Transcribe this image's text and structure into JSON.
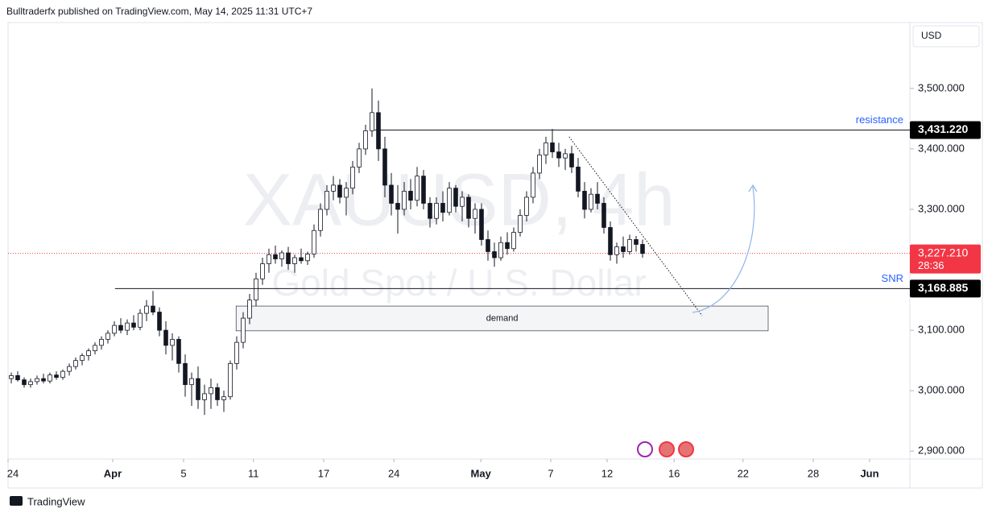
{
  "header": {
    "publisher": "Bulltraderfx published on TradingView.com, May 14, 2025 11:31 UTC+7"
  },
  "chart_data": {
    "type": "candlestick",
    "title": "XAUUSD, 4h",
    "subtitle": "Gold Spot / U.S. Dollar",
    "currency": "USD",
    "xlim": [
      0,
      140
    ],
    "xticks": [
      {
        "value": 0,
        "label": "24"
      },
      {
        "value": 16.25,
        "label": "Apr"
      },
      {
        "value": 27.25,
        "label": "5"
      },
      {
        "value": 38.1,
        "label": "11"
      },
      {
        "value": 49,
        "label": "17"
      },
      {
        "value": 59.9,
        "label": "24"
      },
      {
        "value": 73.4,
        "label": "May"
      },
      {
        "value": 84.25,
        "label": "7"
      },
      {
        "value": 93,
        "label": "12"
      },
      {
        "value": 103.4,
        "label": "16"
      },
      {
        "value": 114.1,
        "label": "22"
      },
      {
        "value": 125,
        "label": "28"
      },
      {
        "value": 133.75,
        "label": "Jun"
      }
    ],
    "ylim": [
      2887,
      3609
    ],
    "yticks": [
      {
        "value": 2900,
        "label": "2,900.000"
      },
      {
        "value": 3000,
        "label": "3,000.000"
      },
      {
        "value": 3100,
        "label": "3,100.000"
      },
      {
        "value": 3300,
        "label": "3,300.000"
      },
      {
        "value": 3400,
        "label": "3,400.000"
      },
      {
        "value": 3500,
        "label": "3,500.000"
      }
    ],
    "up_color": "#ffffff",
    "down_color": "#131722",
    "candles": [
      [
        3020,
        3030,
        3012,
        3025
      ],
      [
        3025,
        3032,
        3015,
        3018
      ],
      [
        3018,
        3022,
        3005,
        3010
      ],
      [
        3010,
        3020,
        3005,
        3015
      ],
      [
        3015,
        3025,
        3010,
        3020
      ],
      [
        3020,
        3028,
        3012,
        3016
      ],
      [
        3016,
        3030,
        3012,
        3026
      ],
      [
        3026,
        3032,
        3018,
        3022
      ],
      [
        3022,
        3035,
        3018,
        3032
      ],
      [
        3032,
        3045,
        3025,
        3040
      ],
      [
        3040,
        3055,
        3035,
        3050
      ],
      [
        3050,
        3062,
        3042,
        3058
      ],
      [
        3058,
        3070,
        3050,
        3066
      ],
      [
        3066,
        3080,
        3060,
        3075
      ],
      [
        3075,
        3090,
        3068,
        3085
      ],
      [
        3085,
        3100,
        3078,
        3095
      ],
      [
        3095,
        3115,
        3090,
        3108
      ],
      [
        3108,
        3120,
        3095,
        3100
      ],
      [
        3100,
        3118,
        3092,
        3112
      ],
      [
        3112,
        3125,
        3100,
        3105
      ],
      [
        3105,
        3135,
        3100,
        3128
      ],
      [
        3128,
        3150,
        3115,
        3140
      ],
      [
        3140,
        3165,
        3125,
        3130
      ],
      [
        3130,
        3138,
        3090,
        3100
      ],
      [
        3100,
        3115,
        3060,
        3075
      ],
      [
        3075,
        3095,
        3050,
        3085
      ],
      [
        3085,
        3090,
        3030,
        3045
      ],
      [
        3045,
        3060,
        2990,
        3010
      ],
      [
        3010,
        3030,
        2975,
        3020
      ],
      [
        3020,
        3040,
        2970,
        2985
      ],
      [
        2985,
        3010,
        2960,
        2995
      ],
      [
        2995,
        3020,
        2970,
        3005
      ],
      [
        3005,
        3012,
        2975,
        2985
      ],
      [
        2985,
        3000,
        2965,
        2990
      ],
      [
        2990,
        3050,
        2985,
        3045
      ],
      [
        3045,
        3090,
        3035,
        3080
      ],
      [
        3080,
        3130,
        3070,
        3120
      ],
      [
        3120,
        3160,
        3110,
        3150
      ],
      [
        3150,
        3195,
        3140,
        3185
      ],
      [
        3185,
        3220,
        3175,
        3210
      ],
      [
        3210,
        3235,
        3195,
        3225
      ],
      [
        3225,
        3240,
        3210,
        3218
      ],
      [
        3218,
        3232,
        3205,
        3228
      ],
      [
        3228,
        3238,
        3200,
        3210
      ],
      [
        3210,
        3225,
        3195,
        3220
      ],
      [
        3220,
        3235,
        3210,
        3215
      ],
      [
        3215,
        3230,
        3208,
        3226
      ],
      [
        3226,
        3275,
        3220,
        3265
      ],
      [
        3265,
        3310,
        3255,
        3300
      ],
      [
        3300,
        3340,
        3290,
        3330
      ],
      [
        3330,
        3355,
        3315,
        3340
      ],
      [
        3340,
        3350,
        3310,
        3320
      ],
      [
        3320,
        3345,
        3290,
        3335
      ],
      [
        3335,
        3380,
        3325,
        3370
      ],
      [
        3370,
        3410,
        3360,
        3400
      ],
      [
        3400,
        3440,
        3390,
        3430
      ],
      [
        3430,
        3500,
        3420,
        3460
      ],
      [
        3460,
        3480,
        3380,
        3400
      ],
      [
        3400,
        3420,
        3320,
        3340
      ],
      [
        3340,
        3360,
        3290,
        3310
      ],
      [
        3310,
        3340,
        3260,
        3300
      ],
      [
        3300,
        3345,
        3290,
        3330
      ],
      [
        3330,
        3350,
        3300,
        3315
      ],
      [
        3315,
        3370,
        3305,
        3355
      ],
      [
        3355,
        3365,
        3300,
        3310
      ],
      [
        3310,
        3320,
        3270,
        3285
      ],
      [
        3285,
        3320,
        3275,
        3310
      ],
      [
        3310,
        3330,
        3280,
        3295
      ],
      [
        3295,
        3345,
        3290,
        3335
      ],
      [
        3335,
        3340,
        3295,
        3305
      ],
      [
        3305,
        3330,
        3280,
        3320
      ],
      [
        3320,
        3325,
        3270,
        3285
      ],
      [
        3285,
        3310,
        3260,
        3300
      ],
      [
        3300,
        3310,
        3240,
        3250
      ],
      [
        3250,
        3265,
        3215,
        3230
      ],
      [
        3230,
        3245,
        3205,
        3220
      ],
      [
        3220,
        3255,
        3215,
        3245
      ],
      [
        3245,
        3262,
        3225,
        3235
      ],
      [
        3235,
        3270,
        3230,
        3262
      ],
      [
        3262,
        3300,
        3255,
        3290
      ],
      [
        3290,
        3330,
        3280,
        3320
      ],
      [
        3320,
        3370,
        3310,
        3360
      ],
      [
        3360,
        3400,
        3350,
        3390
      ],
      [
        3390,
        3420,
        3375,
        3410
      ],
      [
        3410,
        3433,
        3385,
        3395
      ],
      [
        3395,
        3410,
        3370,
        3385
      ],
      [
        3385,
        3400,
        3365,
        3392
      ],
      [
        3392,
        3405,
        3360,
        3370
      ],
      [
        3370,
        3385,
        3320,
        3330
      ],
      [
        3330,
        3345,
        3285,
        3300
      ],
      [
        3300,
        3335,
        3295,
        3325
      ],
      [
        3325,
        3345,
        3300,
        3310
      ],
      [
        3310,
        3320,
        3260,
        3270
      ],
      [
        3270,
        3280,
        3215,
        3225
      ],
      [
        3225,
        3245,
        3210,
        3238
      ],
      [
        3238,
        3255,
        3220,
        3230
      ],
      [
        3230,
        3258,
        3225,
        3250
      ],
      [
        3250,
        3256,
        3230,
        3242
      ],
      [
        3242,
        3250,
        3220,
        3227
      ]
    ],
    "levels": [
      {
        "label": "resistance",
        "value": 3431.22,
        "value_label": "3,431.220",
        "start": 56.9
      },
      {
        "label": "SNR",
        "value": 3168.885,
        "value_label": "3,168.885",
        "start": 16.6
      }
    ],
    "last_price": {
      "value": 3227.21,
      "value_label": "3,227.210",
      "countdown": "28:36",
      "color": "#f23645"
    },
    "zones": [
      {
        "label": "demand",
        "top": 3140,
        "bottom": 3099,
        "start": 35.4,
        "end": 118
      }
    ],
    "trendline": {
      "x": [
        87.1,
        107.75
      ],
      "y": [
        3420,
        3124
      ]
    }
  },
  "footer": {
    "brand": "TradingView"
  }
}
